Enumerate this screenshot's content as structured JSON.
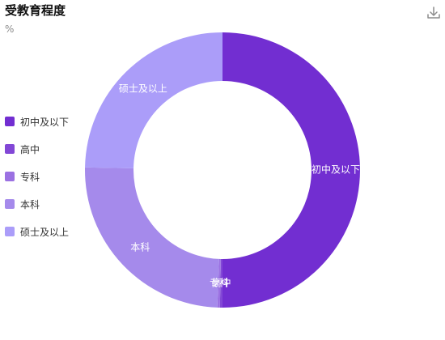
{
  "title": "受教育程度",
  "unit": "%",
  "download_icon": "download-icon",
  "chart_data": {
    "type": "pie",
    "variant": "donut",
    "categories": [
      "初中及以下",
      "高中",
      "专科",
      "本科",
      "硕士及以上"
    ],
    "values": [
      50,
      0.3,
      0.3,
      24.7,
      24.7
    ],
    "colors": [
      "#722ed1",
      "#8247d6",
      "#9b71e2",
      "#a58aeb",
      "#ab9df9"
    ],
    "slice_labels": [
      "初中及以下",
      "高中",
      "专科",
      "本科",
      "硕士及以上"
    ],
    "legend": {
      "position": "left",
      "items": [
        "初中及以下",
        "高中",
        "专科",
        "本科",
        "硕士及以上"
      ]
    }
  }
}
